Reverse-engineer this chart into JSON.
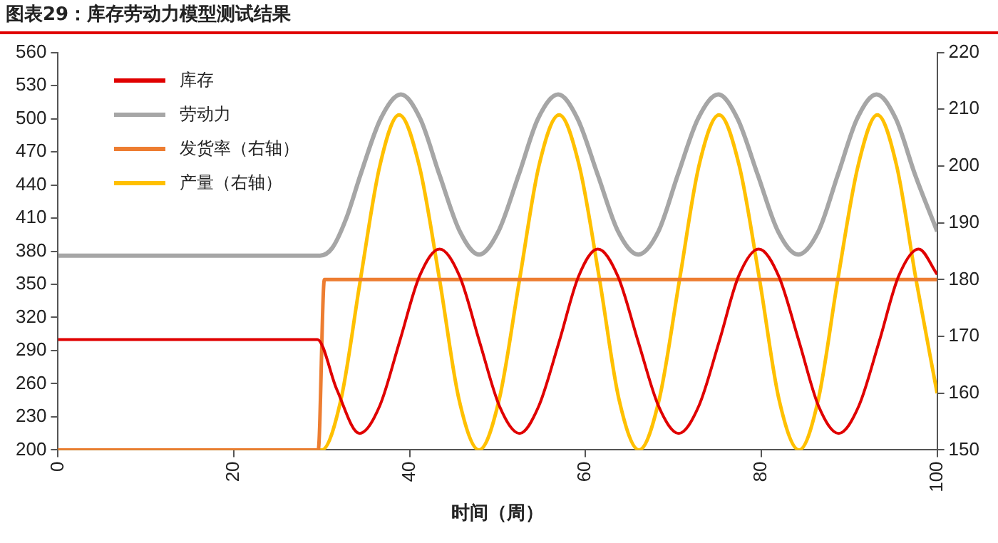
{
  "chart_data": {
    "type": "line",
    "title": "图表29：库存劳动力模型测试结果",
    "xlabel": "时间（周）",
    "legend": "top left",
    "marker": "none",
    "xlim": [
      0,
      100
    ],
    "xticks": [
      0,
      20,
      40,
      60,
      80,
      100
    ],
    "ylim": [
      200,
      560
    ],
    "yticks": [
      200,
      230,
      260,
      290,
      320,
      350,
      380,
      410,
      440,
      470,
      500,
      530,
      560
    ],
    "y2lim": [
      150,
      220
    ],
    "y2ticks": [
      150,
      160,
      170,
      180,
      190,
      200,
      210,
      220
    ],
    "series": [
      {
        "name": "库存",
        "color": "#e00000",
        "x": [
          0,
          29.5,
          31.7,
          34.3,
          36.6,
          38.85,
          41.1,
          43.4,
          45.7,
          47.95,
          50.2,
          52.5,
          54.7,
          57.0,
          59.2,
          61.4,
          63.7,
          66.0,
          68.3,
          70.6,
          72.9,
          75.2,
          77.4,
          79.7,
          82.0,
          84.3,
          86.5,
          88.8,
          91.1,
          93.4,
          95.6,
          97.9,
          100
        ],
        "values": [
          300,
          300,
          255,
          215,
          240,
          298,
          357,
          382,
          357,
          298,
          240,
          215,
          240,
          298,
          357,
          382,
          357,
          298,
          240,
          215,
          240,
          298,
          357,
          382,
          357,
          298,
          240,
          215,
          240,
          298,
          357,
          382,
          359
        ]
      },
      {
        "name": "劳动力",
        "color": "#a6a6a6",
        "x": [
          0,
          29.8,
          31.2,
          32.8,
          34.4,
          36.7,
          39.0,
          41.2,
          43.4,
          45.7,
          47.9,
          50.1,
          52.4,
          54.6,
          56.9,
          59.1,
          61.4,
          63.7,
          66.0,
          68.3,
          70.5,
          72.8,
          75.1,
          77.3,
          79.6,
          81.9,
          84.2,
          86.5,
          88.7,
          90.9,
          93.1,
          95.3,
          97.5,
          100
        ],
        "values": [
          376,
          376,
          383,
          410,
          449,
          500,
          522,
          500,
          449,
          398,
          377,
          398,
          449,
          500,
          522,
          500,
          449,
          398,
          377,
          398,
          449,
          500,
          522,
          500,
          449,
          398,
          377,
          398,
          449,
          500,
          522,
          500,
          449,
          398
        ]
      },
      {
        "name": "发货率（右轴）",
        "color": "#ed7d31",
        "axis": "y2",
        "x": [
          0,
          29.6,
          30.3,
          100
        ],
        "values": [
          150,
          150,
          180,
          180
        ]
      },
      {
        "name": "产量（右轴）",
        "color": "#ffc000",
        "axis": "y2",
        "x": [
          0,
          30,
          32.2,
          34.4,
          36.6,
          38.8,
          41.1,
          43.4,
          45.6,
          47.9,
          50.2,
          52.5,
          54.7,
          57.0,
          59.3,
          61.6,
          63.8,
          66.1,
          68.4,
          70.7,
          72.9,
          75.2,
          77.5,
          79.8,
          82.0,
          84.3,
          86.5,
          88.7,
          91.0,
          93.2,
          95.4,
          97.6,
          100
        ],
        "values": [
          150,
          150,
          159,
          180,
          200,
          209,
          200,
          180,
          159,
          150,
          159,
          180,
          200,
          209,
          200,
          180,
          159,
          150,
          159,
          180,
          200,
          209,
          200,
          180,
          159,
          150,
          159,
          180,
          200,
          209,
          200,
          180,
          160
        ]
      }
    ]
  }
}
